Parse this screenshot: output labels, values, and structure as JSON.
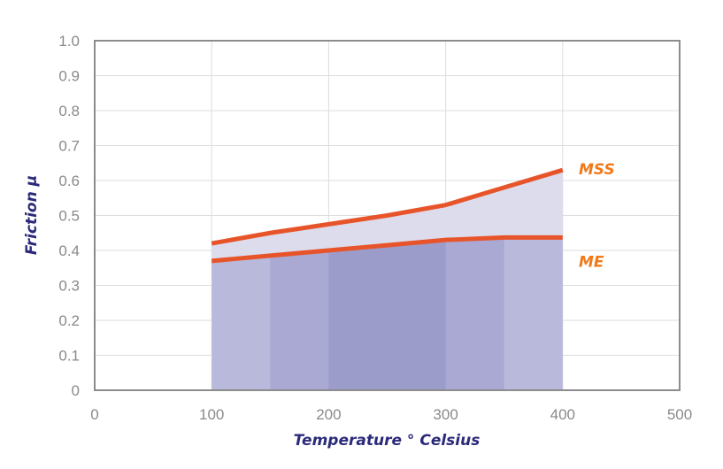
{
  "chart_data": {
    "type": "line",
    "xlabel": "Temperature  ° Celsius",
    "ylabel": "Friction µ",
    "xlim": [
      0,
      500
    ],
    "ylim": [
      0,
      1.0
    ],
    "x_ticks": [
      "0",
      "100",
      "200",
      "300",
      "400",
      "500"
    ],
    "y_ticks": [
      "0",
      "0.1",
      "0.2",
      "0.3",
      "0.4",
      "0.5",
      "0.6",
      "0.7",
      "0.8",
      "0.9",
      "1.0"
    ],
    "grid": true,
    "x": [
      100,
      150,
      200,
      250,
      300,
      350,
      400
    ],
    "series": [
      {
        "name": "MSS",
        "values": [
          0.42,
          0.45,
          0.475,
          0.5,
          0.53,
          0.58,
          0.63
        ],
        "color": "#e8542a"
      },
      {
        "name": "ME",
        "values": [
          0.37,
          0.385,
          0.4,
          0.415,
          0.43,
          0.437,
          0.437
        ],
        "color": "#e8542a"
      }
    ],
    "label_color": "#f07a1a",
    "fill_colors": {
      "outer": "#dcdcec",
      "band_light": "#b9b9dc",
      "band_mid": "#a9a9d4",
      "band_dark": "#9c9ccb"
    }
  }
}
